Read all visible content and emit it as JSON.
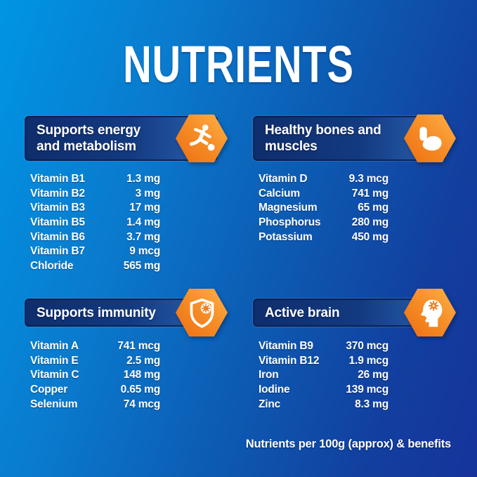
{
  "page": {
    "title": "NUTRIENTS",
    "footer": "Nutrients per 100g (approx) & benefits"
  },
  "colors": {
    "background_top_left": "#0095e4",
    "background_bottom_right": "#16339b",
    "header_bar_navy": "#0f2d6c",
    "header_bar_light": "#2a62b2",
    "hexagon_orange_light": "#ffb14a",
    "hexagon_orange_dark": "#ed6e12",
    "text": "#ffffff"
  },
  "sections": [
    {
      "id": "energy-metabolism",
      "icon": "runner-kicking-ball-icon",
      "title_lines": [
        "Supports energy",
        "and metabolism"
      ],
      "rows": [
        {
          "label": "Vitamin B1",
          "value": "1.3 mg"
        },
        {
          "label": "Vitamin B2",
          "value": "3 mg"
        },
        {
          "label": "Vitamin B3",
          "value": "17 mg"
        },
        {
          "label": "Vitamin B5",
          "value": "1.4 mg"
        },
        {
          "label": "Vitamin B6",
          "value": "3.7 mg"
        },
        {
          "label": "Vitamin B7",
          "value": "9 mcg"
        },
        {
          "label": "Chloride",
          "value": "565 mg"
        }
      ]
    },
    {
      "id": "bones-muscles",
      "icon": "bicep-muscle-icon",
      "title_lines": [
        "Healthy bones and",
        "muscles"
      ],
      "rows": [
        {
          "label": "Vitamin D",
          "value": "9.3 mcg"
        },
        {
          "label": "Calcium",
          "value": "741 mg"
        },
        {
          "label": "Magnesium",
          "value": "65 mg"
        },
        {
          "label": "Phosphorus",
          "value": "280 mg"
        },
        {
          "label": "Potassium",
          "value": "450 mg"
        }
      ]
    },
    {
      "id": "immunity",
      "icon": "shield-virus-icon",
      "title_lines": [
        "Supports immunity"
      ],
      "rows": [
        {
          "label": "Vitamin A",
          "value": "741 mcg"
        },
        {
          "label": "Vitamin E",
          "value": "2.5 mg"
        },
        {
          "label": "Vitamin C",
          "value": "148 mg"
        },
        {
          "label": "Copper",
          "value": "0.65 mg"
        },
        {
          "label": "Selenium",
          "value": "74 mcg"
        }
      ]
    },
    {
      "id": "brain",
      "icon": "head-gear-icon",
      "title_lines": [
        "Active brain"
      ],
      "rows": [
        {
          "label": "Vitamin B9",
          "value": "370 mcg"
        },
        {
          "label": "Vitamin B12",
          "value": "1.9 mcg"
        },
        {
          "label": "Iron",
          "value": "26 mg"
        },
        {
          "label": "Iodine",
          "value": "139 mcg"
        },
        {
          "label": "Zinc",
          "value": "8.3 mg"
        }
      ]
    }
  ]
}
